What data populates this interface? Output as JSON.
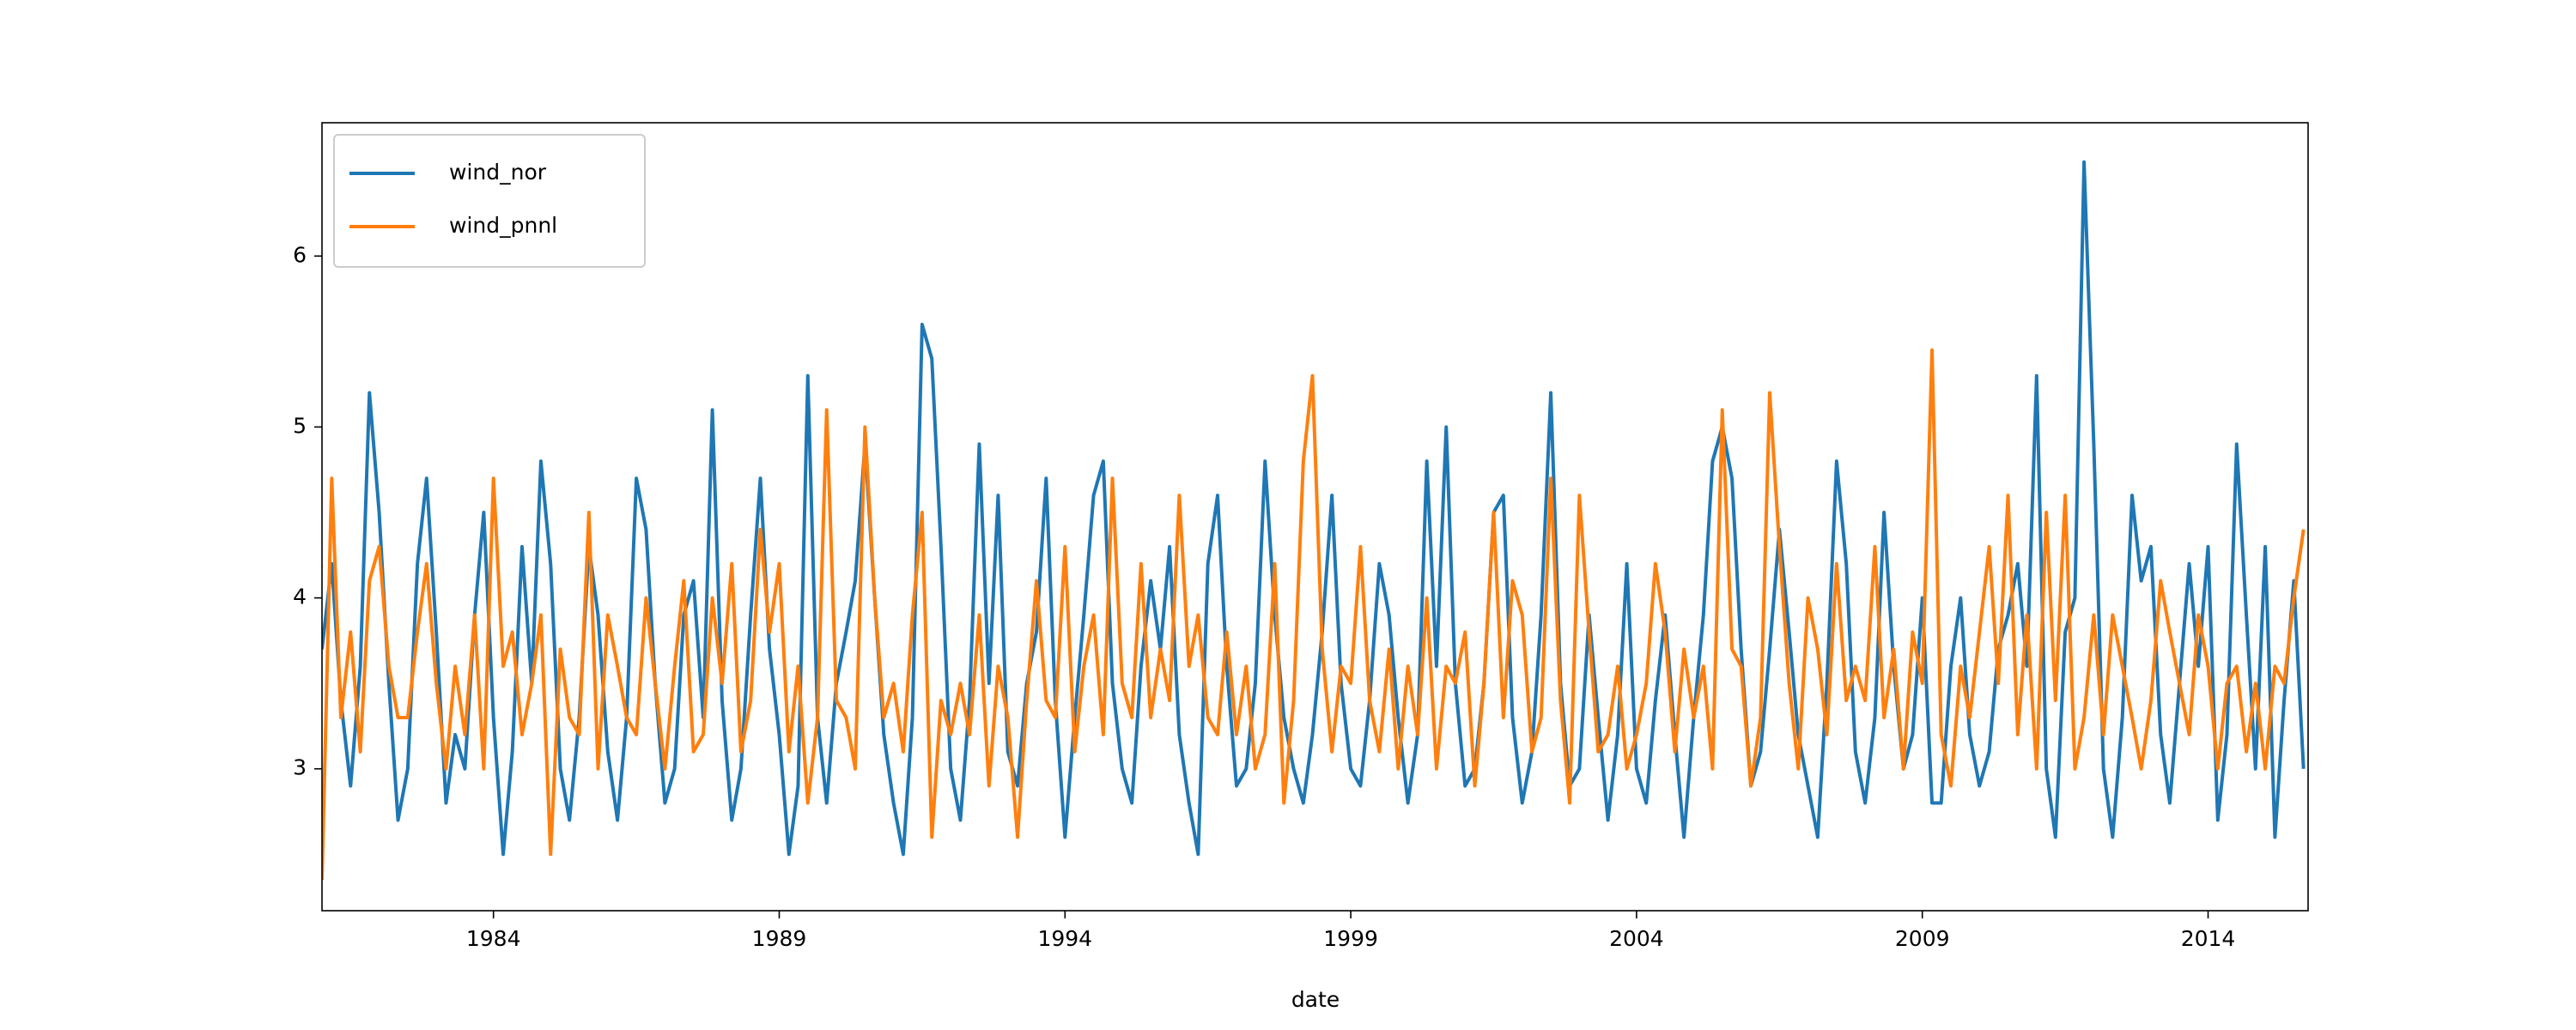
{
  "chart_data": {
    "type": "line",
    "xlabel": "date",
    "x": [
      1981,
      1981.17,
      1981.33,
      1981.5,
      1981.67,
      1981.83,
      1982,
      1982.17,
      1982.33,
      1982.5,
      1982.67,
      1982.83,
      1983,
      1983.17,
      1983.33,
      1983.5,
      1983.67,
      1983.83,
      1984,
      1984.17,
      1984.33,
      1984.5,
      1984.67,
      1984.83,
      1985,
      1985.17,
      1985.33,
      1985.5,
      1985.67,
      1985.83,
      1986,
      1986.17,
      1986.33,
      1986.5,
      1986.67,
      1986.83,
      1987,
      1987.17,
      1987.33,
      1987.5,
      1987.67,
      1987.83,
      1988,
      1988.17,
      1988.33,
      1988.5,
      1988.67,
      1988.83,
      1989,
      1989.17,
      1989.33,
      1989.5,
      1989.67,
      1989.83,
      1990,
      1990.17,
      1990.33,
      1990.5,
      1990.67,
      1990.83,
      1991,
      1991.17,
      1991.33,
      1991.5,
      1991.67,
      1991.83,
      1992,
      1992.17,
      1992.33,
      1992.5,
      1992.67,
      1992.83,
      1993,
      1993.17,
      1993.33,
      1993.5,
      1993.67,
      1993.83,
      1994,
      1994.17,
      1994.33,
      1994.5,
      1994.67,
      1994.83,
      1995,
      1995.17,
      1995.33,
      1995.5,
      1995.67,
      1995.83,
      1996,
      1996.17,
      1996.33,
      1996.5,
      1996.67,
      1996.83,
      1997,
      1997.17,
      1997.33,
      1997.5,
      1997.67,
      1997.83,
      1998,
      1998.17,
      1998.33,
      1998.5,
      1998.67,
      1998.83,
      1999,
      1999.17,
      1999.33,
      1999.5,
      1999.67,
      1999.83,
      2000,
      2000.17,
      2000.33,
      2000.5,
      2000.67,
      2000.83,
      2001,
      2001.17,
      2001.33,
      2001.5,
      2001.67,
      2001.83,
      2002,
      2002.17,
      2002.33,
      2002.5,
      2002.67,
      2002.83,
      2003,
      2003.17,
      2003.33,
      2003.5,
      2003.67,
      2003.83,
      2004,
      2004.17,
      2004.33,
      2004.5,
      2004.67,
      2004.83,
      2005,
      2005.17,
      2005.33,
      2005.5,
      2005.67,
      2005.83,
      2006,
      2006.17,
      2006.33,
      2006.5,
      2006.67,
      2006.83,
      2007,
      2007.17,
      2007.33,
      2007.5,
      2007.67,
      2007.83,
      2008,
      2008.17,
      2008.33,
      2008.5,
      2008.67,
      2008.83,
      2009,
      2009.17,
      2009.33,
      2009.5,
      2009.67,
      2009.83,
      2010,
      2010.17,
      2010.33,
      2010.5,
      2010.67,
      2010.83,
      2011,
      2011.17,
      2011.33,
      2011.5,
      2011.67,
      2011.83,
      2012,
      2012.17,
      2012.33,
      2012.5,
      2012.67,
      2012.83,
      2013,
      2013.17,
      2013.33,
      2013.5,
      2013.67,
      2013.83,
      2014,
      2014.17,
      2014.33,
      2014.5,
      2014.67,
      2014.83,
      2015,
      2015.17,
      2015.33,
      2015.5,
      2015.67
    ],
    "series": [
      {
        "name": "wind_nor",
        "color": "#1f77b4",
        "values": [
          3.7,
          4.2,
          3.4,
          2.9,
          3.6,
          5.2,
          4.5,
          3.5,
          2.7,
          3.0,
          4.2,
          4.7,
          3.8,
          2.8,
          3.2,
          3.0,
          3.9,
          4.5,
          3.3,
          2.5,
          3.1,
          4.3,
          3.5,
          4.8,
          4.2,
          3.0,
          2.7,
          3.3,
          4.3,
          3.9,
          3.1,
          2.7,
          3.3,
          4.7,
          4.4,
          3.5,
          2.8,
          3.0,
          3.9,
          4.1,
          3.3,
          5.1,
          3.4,
          2.7,
          3.0,
          3.9,
          4.7,
          3.7,
          3.2,
          2.5,
          2.9,
          5.3,
          3.3,
          2.8,
          3.5,
          3.8,
          4.1,
          4.9,
          4.0,
          3.2,
          2.8,
          2.5,
          3.3,
          5.6,
          5.4,
          4.3,
          3.0,
          2.7,
          3.4,
          4.9,
          3.5,
          4.6,
          3.1,
          2.9,
          3.5,
          3.8,
          4.7,
          3.4,
          2.6,
          3.3,
          3.9,
          4.6,
          4.8,
          3.5,
          3.0,
          2.8,
          3.6,
          4.1,
          3.7,
          4.3,
          3.2,
          2.8,
          2.5,
          4.2,
          4.6,
          3.6,
          2.9,
          3.0,
          3.5,
          4.8,
          3.9,
          3.3,
          3.0,
          2.8,
          3.2,
          3.8,
          4.6,
          3.5,
          3.0,
          2.9,
          3.4,
          4.2,
          3.9,
          3.3,
          2.8,
          3.2,
          4.8,
          3.6,
          5.0,
          3.5,
          2.9,
          3.0,
          3.5,
          4.5,
          4.6,
          3.3,
          2.8,
          3.1,
          3.9,
          5.2,
          3.5,
          2.9,
          3.0,
          3.9,
          3.3,
          2.7,
          3.2,
          4.2,
          3.0,
          2.8,
          3.4,
          3.9,
          3.2,
          2.6,
          3.3,
          3.9,
          4.8,
          5.0,
          4.7,
          3.7,
          2.9,
          3.1,
          3.7,
          4.4,
          3.8,
          3.2,
          2.9,
          2.6,
          3.5,
          4.8,
          4.2,
          3.1,
          2.8,
          3.3,
          4.5,
          3.6,
          3.0,
          3.2,
          4.0,
          2.8,
          2.8,
          3.6,
          4.0,
          3.2,
          2.9,
          3.1,
          3.7,
          3.9,
          4.2,
          3.6,
          5.3,
          3.0,
          2.6,
          3.8,
          4.0,
          6.55,
          4.9,
          3.0,
          2.6,
          3.3,
          4.6,
          4.1,
          4.3,
          3.2,
          2.8,
          3.5,
          4.2,
          3.6,
          4.3,
          2.7,
          3.2,
          4.9,
          3.9,
          3.0,
          4.3,
          2.6,
          3.4,
          4.1,
          3.0
        ]
      },
      {
        "name": "wind_pnnl",
        "color": "#ff7f0e",
        "values": [
          2.35,
          4.7,
          3.3,
          3.8,
          3.1,
          4.1,
          4.3,
          3.6,
          3.3,
          3.3,
          3.8,
          4.2,
          3.5,
          3.0,
          3.6,
          3.2,
          3.9,
          3.0,
          4.7,
          3.6,
          3.8,
          3.2,
          3.5,
          3.9,
          2.5,
          3.7,
          3.3,
          3.2,
          4.5,
          3.0,
          3.9,
          3.6,
          3.3,
          3.2,
          4.0,
          3.5,
          3.0,
          3.6,
          4.1,
          3.1,
          3.2,
          4.0,
          3.5,
          4.2,
          3.1,
          3.4,
          4.4,
          3.8,
          4.2,
          3.1,
          3.6,
          2.8,
          3.3,
          5.1,
          3.4,
          3.3,
          3.0,
          5.0,
          4.0,
          3.3,
          3.5,
          3.1,
          3.9,
          4.5,
          2.6,
          3.4,
          3.2,
          3.5,
          3.2,
          3.9,
          2.9,
          3.6,
          3.3,
          2.6,
          3.4,
          4.1,
          3.4,
          3.3,
          4.3,
          3.1,
          3.6,
          3.9,
          3.2,
          4.7,
          3.5,
          3.3,
          4.2,
          3.3,
          3.7,
          3.4,
          4.6,
          3.6,
          3.9,
          3.3,
          3.2,
          3.8,
          3.2,
          3.6,
          3.0,
          3.2,
          4.2,
          2.8,
          3.4,
          4.8,
          5.3,
          3.7,
          3.1,
          3.6,
          3.5,
          4.3,
          3.4,
          3.1,
          3.7,
          3.0,
          3.6,
          3.2,
          4.0,
          3.0,
          3.6,
          3.5,
          3.8,
          2.9,
          3.5,
          4.5,
          3.3,
          4.1,
          3.9,
          3.1,
          3.3,
          4.7,
          3.4,
          2.8,
          4.6,
          3.8,
          3.1,
          3.2,
          3.6,
          3.0,
          3.2,
          3.5,
          4.2,
          3.8,
          3.1,
          3.7,
          3.3,
          3.6,
          3.0,
          5.1,
          3.7,
          3.6,
          2.9,
          3.3,
          5.2,
          4.3,
          3.5,
          3.0,
          4.0,
          3.7,
          3.2,
          4.2,
          3.4,
          3.6,
          3.4,
          4.3,
          3.3,
          3.7,
          3.0,
          3.8,
          3.5,
          5.45,
          3.2,
          2.9,
          3.6,
          3.3,
          3.8,
          4.3,
          3.5,
          4.6,
          3.2,
          3.9,
          3.0,
          4.5,
          3.4,
          4.6,
          3.0,
          3.3,
          3.9,
          3.2,
          3.9,
          3.6,
          3.3,
          3.0,
          3.4,
          4.1,
          3.8,
          3.5,
          3.2,
          3.9,
          3.6,
          3.0,
          3.5,
          3.6,
          3.1,
          3.5,
          3.0,
          3.6,
          3.5,
          4.0,
          4.4
        ]
      }
    ],
    "xlim": [
      1981,
      2015.75
    ],
    "ylim": [
      2.17,
      6.78
    ],
    "xticks": [
      1984,
      1989,
      1994,
      1999,
      2004,
      2009,
      2014
    ],
    "yticks": [
      3,
      4,
      5,
      6
    ],
    "legend": "upper left"
  }
}
